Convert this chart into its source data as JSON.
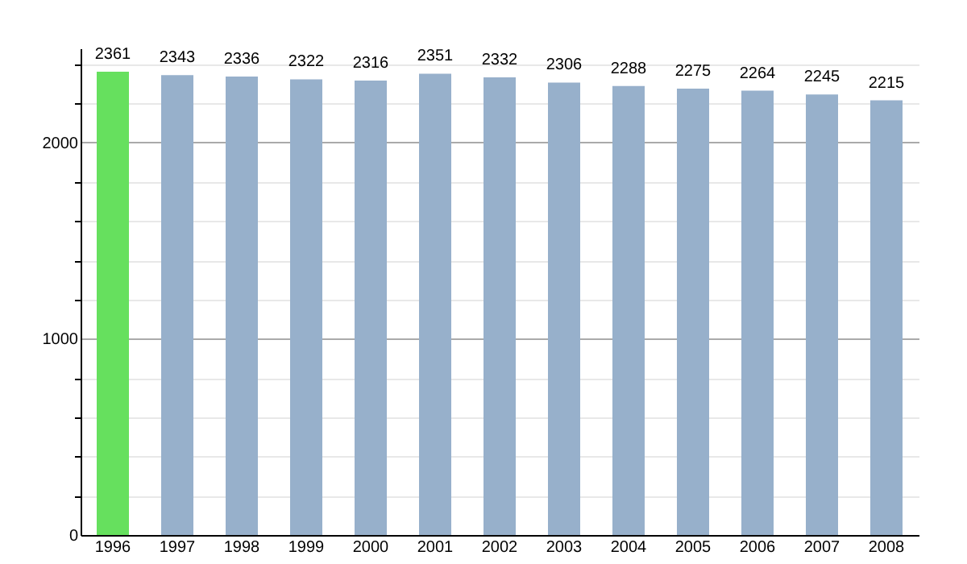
{
  "chart_data": {
    "type": "bar",
    "categories": [
      "1996",
      "1997",
      "1998",
      "1999",
      "2000",
      "2001",
      "2002",
      "2003",
      "2004",
      "2005",
      "2006",
      "2007",
      "2008"
    ],
    "values": [
      2361,
      2343,
      2336,
      2322,
      2316,
      2351,
      2332,
      2306,
      2288,
      2275,
      2264,
      2245,
      2215
    ],
    "colors": [
      "#66e05e",
      "#97b0cb",
      "#97b0cb",
      "#97b0cb",
      "#97b0cb",
      "#97b0cb",
      "#97b0cb",
      "#97b0cb",
      "#97b0cb",
      "#97b0cb",
      "#97b0cb",
      "#97b0cb",
      "#97b0cb"
    ],
    "ylim": [
      0,
      2480
    ],
    "yticks": [
      0,
      {
        "value": 200,
        "label": null
      },
      {
        "value": 400,
        "label": null
      },
      {
        "value": 600,
        "label": null
      },
      {
        "value": 800,
        "label": null
      },
      1000,
      {
        "value": 1200,
        "label": null
      },
      {
        "value": 1400,
        "label": null
      },
      {
        "value": 1600,
        "label": null
      },
      {
        "value": 1800,
        "label": null
      },
      2000,
      {
        "value": 2200,
        "label": null
      },
      {
        "value": 2400,
        "label": null
      }
    ],
    "grid": "y",
    "data_labels": true
  }
}
